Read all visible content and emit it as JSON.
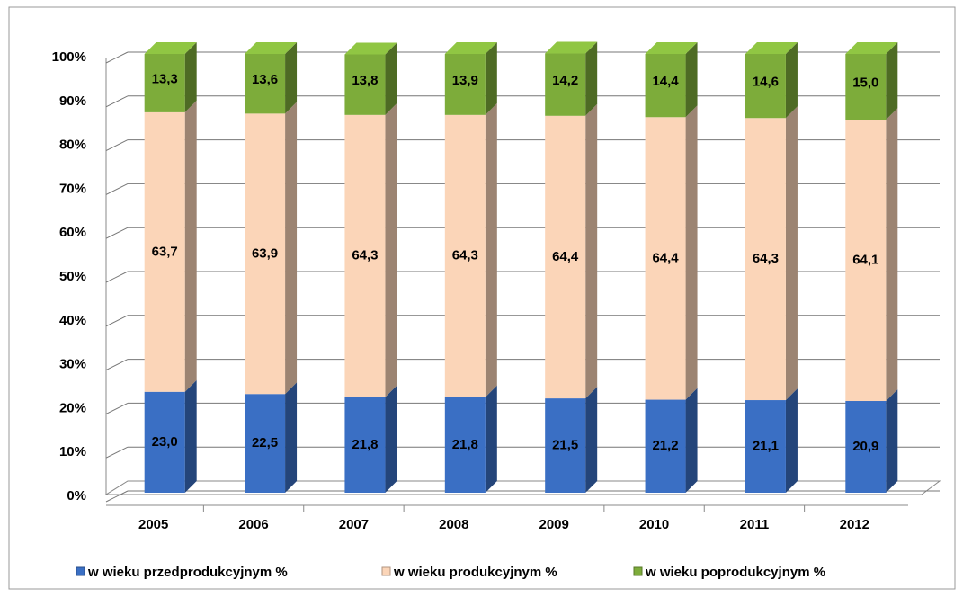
{
  "chart_data": {
    "type": "bar",
    "stacked": true,
    "categories": [
      "2005",
      "2006",
      "2007",
      "2008",
      "2009",
      "2010",
      "2011",
      "2012"
    ],
    "series": [
      {
        "name": "w wieku przedprodukcyjnym  %",
        "color": "#3a6fc4",
        "values": [
          23.0,
          22.5,
          21.8,
          21.8,
          21.5,
          21.2,
          21.1,
          20.9
        ],
        "value_labels": [
          "23,0",
          "22,5",
          "21,8",
          "21,8",
          "21,5",
          "21,2",
          "21,1",
          "20,9"
        ]
      },
      {
        "name": "w wieku produkcyjnym  %",
        "color": "#fbd5b8",
        "values": [
          63.7,
          63.9,
          64.3,
          64.3,
          64.4,
          64.4,
          64.3,
          64.1
        ],
        "value_labels": [
          "63,7",
          "63,9",
          "64,3",
          "64,3",
          "64,4",
          "64,4",
          "64,3",
          "64,1"
        ]
      },
      {
        "name": "w wieku poprodukcyjnym  %",
        "color": "#7dac3a",
        "values": [
          13.3,
          13.6,
          13.8,
          13.9,
          14.2,
          14.4,
          14.6,
          15.0
        ],
        "value_labels": [
          "13,3",
          "13,6",
          "13,8",
          "13,9",
          "14,2",
          "14,4",
          "14,6",
          "15,0"
        ]
      }
    ],
    "ylim": [
      0,
      100
    ],
    "yticks": [
      {
        "value": 0,
        "label": "0%"
      },
      {
        "value": 10,
        "label": "10%"
      },
      {
        "value": 20,
        "label": "20%"
      },
      {
        "value": 30,
        "label": "30%"
      },
      {
        "value": 40,
        "label": "40%"
      },
      {
        "value": 50,
        "label": "50%"
      },
      {
        "value": 60,
        "label": "60%"
      },
      {
        "value": 70,
        "label": "70%"
      },
      {
        "value": 80,
        "label": "80%"
      },
      {
        "value": 90,
        "label": "90%"
      },
      {
        "value": 100,
        "label": "100%"
      }
    ],
    "grid": true,
    "legend": "bottom"
  }
}
